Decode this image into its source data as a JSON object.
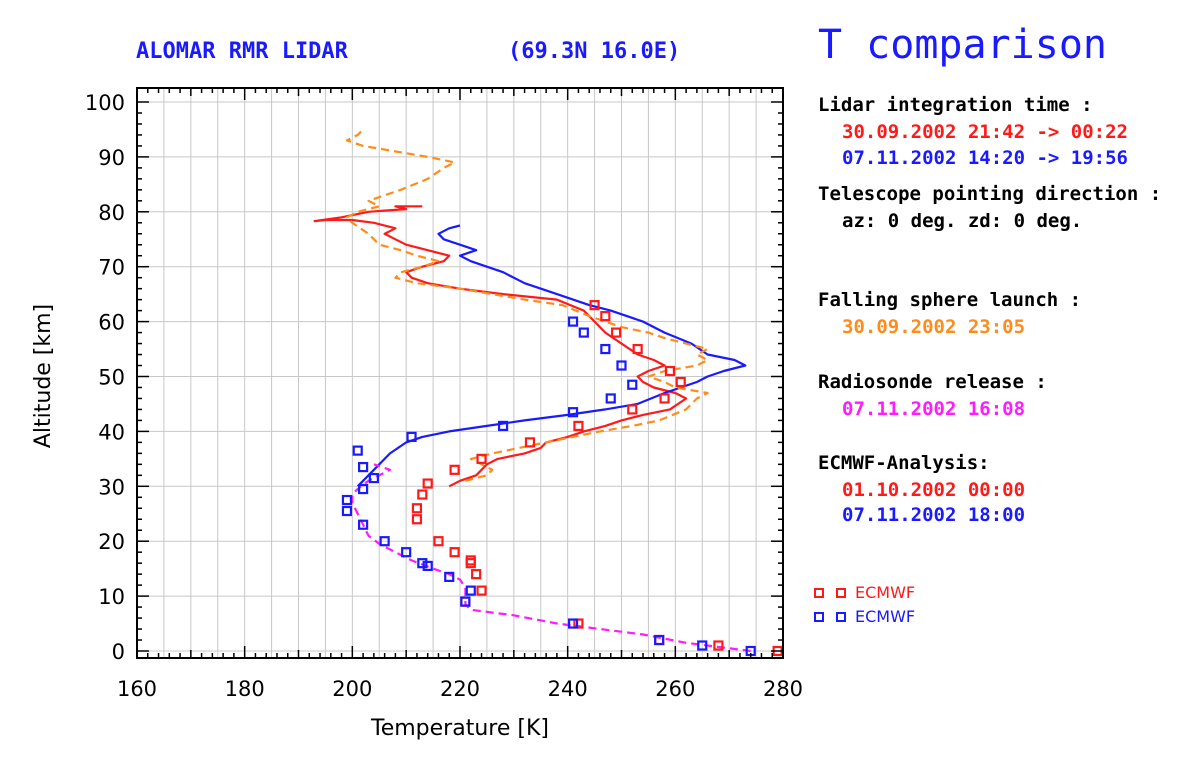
{
  "header": {
    "left_title": "ALOMAR RMR LIDAR",
    "coords": "(69.3N 16.0E)",
    "main_title": "T comparison"
  },
  "panel": {
    "lidar_heading": "Lidar integration time :",
    "lidar_time_1": "30.09.2002 21:42 -> 00:22",
    "lidar_time_2": "07.11.2002 14:20 -> 19:56",
    "telescope_heading": "Telescope pointing direction :",
    "telescope_value": "az: 0 deg. zd: 0 deg.",
    "sphere_heading": "Falling sphere launch :",
    "sphere_value": "30.09.2002 23:05",
    "radiosonde_heading": "Radiosonde release :",
    "radiosonde_value": "07.11.2002 16:08",
    "ecmwf_heading": "ECMWF-Analysis:",
    "ecmwf_value_1": "01.10.2002 00:00",
    "ecmwf_value_2": "07.11.2002 18:00"
  },
  "colors": {
    "red": "#ff1a1a",
    "blue": "#1a1aff",
    "orange": "#ff8c1a",
    "magenta": "#ff1aff",
    "grid": "#c8c8c8"
  },
  "chart_data": {
    "type": "line",
    "xlabel": "Temperature [K]",
    "ylabel": "Altitude [km]",
    "xlim": [
      160,
      280
    ],
    "ylim": [
      0,
      100
    ],
    "x_ticks": [
      160,
      180,
      200,
      220,
      240,
      260,
      280
    ],
    "y_ticks": [
      0,
      10,
      20,
      30,
      40,
      50,
      60,
      70,
      80,
      90,
      100
    ],
    "grid": true,
    "legend": {
      "placement": "right",
      "entries": [
        {
          "label": "ECMWF",
          "color": "#ff1a1a"
        },
        {
          "label": "ECMWF",
          "color": "#1a1aff"
        }
      ]
    },
    "series": [
      {
        "style": "solid",
        "color": "#ff1a1a",
        "points": [
          [
            218,
            30
          ],
          [
            220,
            31
          ],
          [
            223,
            32
          ],
          [
            225,
            34
          ],
          [
            227,
            35
          ],
          [
            232,
            36
          ],
          [
            235,
            37
          ],
          [
            236,
            38
          ],
          [
            240,
            39
          ],
          [
            243,
            40
          ],
          [
            247,
            41
          ],
          [
            250,
            42
          ],
          [
            254,
            43
          ],
          [
            259,
            44
          ],
          [
            262,
            46
          ],
          [
            260,
            47
          ],
          [
            256,
            48
          ],
          [
            254,
            49
          ],
          [
            253,
            50
          ],
          [
            255,
            51
          ],
          [
            258,
            52
          ],
          [
            256,
            53
          ],
          [
            253,
            54
          ],
          [
            250,
            56
          ],
          [
            247,
            58
          ],
          [
            245,
            60
          ],
          [
            243,
            62
          ],
          [
            238,
            64
          ],
          [
            228,
            65
          ],
          [
            220,
            66
          ],
          [
            214,
            67
          ],
          [
            211,
            68
          ],
          [
            210,
            69
          ],
          [
            213,
            70
          ],
          [
            217,
            71
          ],
          [
            218,
            72
          ],
          [
            214,
            73
          ],
          [
            210,
            74
          ],
          [
            208,
            75
          ],
          [
            206,
            76
          ],
          [
            208,
            77
          ],
          [
            204,
            78
          ],
          [
            200,
            78.5
          ],
          [
            195,
            78.5
          ],
          [
            193,
            78.3
          ],
          [
            198,
            79
          ],
          [
            203,
            80
          ],
          [
            210,
            80.5
          ],
          [
            208,
            81
          ],
          [
            213,
            81
          ]
        ]
      },
      {
        "style": "solid",
        "color": "#1a1aff",
        "points": [
          [
            201,
            30
          ],
          [
            203,
            32
          ],
          [
            205,
            34
          ],
          [
            207,
            36
          ],
          [
            210,
            38
          ],
          [
            213,
            39
          ],
          [
            218,
            40
          ],
          [
            225,
            41
          ],
          [
            232,
            42
          ],
          [
            240,
            43
          ],
          [
            247,
            44
          ],
          [
            253,
            45
          ],
          [
            258,
            47
          ],
          [
            261,
            48
          ],
          [
            264,
            49
          ],
          [
            266,
            50
          ],
          [
            269,
            51
          ],
          [
            273,
            52
          ],
          [
            271,
            53
          ],
          [
            266,
            54
          ],
          [
            263,
            56
          ],
          [
            258,
            58
          ],
          [
            254,
            60
          ],
          [
            248,
            62
          ],
          [
            244,
            63
          ],
          [
            238,
            65
          ],
          [
            232,
            67
          ],
          [
            228,
            69
          ],
          [
            225,
            70
          ],
          [
            222,
            71
          ],
          [
            220,
            72
          ],
          [
            223,
            73
          ],
          [
            220,
            74
          ],
          [
            217,
            75
          ],
          [
            216,
            76
          ],
          [
            218,
            77
          ],
          [
            220,
            77.5
          ]
        ]
      },
      {
        "style": "dashed",
        "color": "#ff8c1a",
        "points": [
          [
            221,
            31
          ],
          [
            225,
            32
          ],
          [
            226,
            33
          ],
          [
            224,
            34
          ],
          [
            222,
            35
          ],
          [
            226,
            36
          ],
          [
            231,
            37
          ],
          [
            236,
            38
          ],
          [
            241,
            39
          ],
          [
            246,
            40
          ],
          [
            252,
            41
          ],
          [
            257,
            42
          ],
          [
            262,
            44
          ],
          [
            264,
            46
          ],
          [
            266,
            47
          ],
          [
            260,
            48
          ],
          [
            258,
            49
          ],
          [
            255,
            50
          ],
          [
            258,
            51
          ],
          [
            264,
            52
          ],
          [
            266,
            53
          ],
          [
            264,
            54
          ],
          [
            266,
            55
          ],
          [
            262,
            56
          ],
          [
            258,
            57
          ],
          [
            255,
            58
          ],
          [
            250,
            59
          ],
          [
            247,
            60
          ],
          [
            244,
            61
          ],
          [
            239,
            63
          ],
          [
            232,
            64
          ],
          [
            220,
            66
          ],
          [
            212,
            67
          ],
          [
            208,
            68
          ],
          [
            209,
            69
          ],
          [
            213,
            70
          ],
          [
            216,
            71
          ],
          [
            212,
            72
          ],
          [
            209,
            73
          ],
          [
            205,
            74
          ],
          [
            203,
            76
          ],
          [
            200,
            78
          ],
          [
            199,
            79
          ],
          [
            201,
            80
          ],
          [
            205,
            81
          ],
          [
            203,
            82
          ],
          [
            209,
            84
          ],
          [
            214,
            86
          ],
          [
            217,
            88
          ],
          [
            219,
            89
          ],
          [
            214,
            90
          ],
          [
            208,
            91
          ],
          [
            202,
            92
          ],
          [
            199,
            93
          ],
          [
            201,
            94
          ],
          [
            202,
            95
          ]
        ]
      },
      {
        "style": "dashed",
        "color": "#ff1aff",
        "points": [
          [
            274,
            0
          ],
          [
            270,
            0.5
          ],
          [
            262,
            1.5
          ],
          [
            254,
            3
          ],
          [
            246,
            4
          ],
          [
            238,
            5
          ],
          [
            230,
            6.5
          ],
          [
            222,
            7.5
          ],
          [
            221,
            8.5
          ],
          [
            221,
            10
          ],
          [
            221,
            11.5
          ],
          [
            220,
            13
          ],
          [
            218,
            14
          ],
          [
            215,
            15
          ],
          [
            211,
            16.5
          ],
          [
            208,
            18
          ],
          [
            205,
            19.5
          ],
          [
            203,
            21
          ],
          [
            202,
            23
          ],
          [
            201,
            25
          ],
          [
            200,
            27
          ],
          [
            200,
            28.5
          ],
          [
            201,
            29.5
          ],
          [
            203,
            31
          ],
          [
            205,
            32
          ],
          [
            207,
            33
          ],
          [
            204,
            34
          ]
        ]
      },
      {
        "style": "squares",
        "color": "#ff1a1a",
        "points": [
          [
            279,
            0
          ],
          [
            268,
            1
          ],
          [
            257,
            2
          ],
          [
            242,
            5
          ],
          [
            221,
            9
          ],
          [
            224,
            11
          ],
          [
            223,
            14
          ],
          [
            222,
            16
          ],
          [
            222,
            16.5
          ],
          [
            219,
            18
          ],
          [
            216,
            20
          ],
          [
            212,
            24
          ],
          [
            212,
            26
          ],
          [
            213,
            28.5
          ],
          [
            214,
            30.5
          ],
          [
            219,
            33
          ],
          [
            224,
            35
          ],
          [
            233,
            38
          ],
          [
            242,
            41
          ],
          [
            252,
            44
          ],
          [
            258,
            46
          ],
          [
            261,
            49
          ],
          [
            259,
            51
          ],
          [
            253,
            55
          ],
          [
            249,
            58
          ],
          [
            247,
            61
          ],
          [
            245,
            63
          ]
        ]
      },
      {
        "style": "squares",
        "color": "#1a1aff",
        "points": [
          [
            274,
            0
          ],
          [
            265,
            1
          ],
          [
            257,
            2
          ],
          [
            241,
            5
          ],
          [
            221,
            9
          ],
          [
            222,
            11
          ],
          [
            218,
            13.5
          ],
          [
            214,
            15.5
          ],
          [
            213,
            16
          ],
          [
            210,
            18
          ],
          [
            206,
            20
          ],
          [
            202,
            23
          ],
          [
            199,
            25.5
          ],
          [
            199,
            27.5
          ],
          [
            202,
            29.5
          ],
          [
            204,
            31.5
          ],
          [
            202,
            33.5
          ],
          [
            201,
            36.5
          ],
          [
            211,
            39
          ],
          [
            228,
            41
          ],
          [
            241,
            43.5
          ],
          [
            248,
            46
          ],
          [
            252,
            48.5
          ],
          [
            250,
            52
          ],
          [
            247,
            55
          ],
          [
            243,
            58
          ],
          [
            241,
            60
          ]
        ]
      }
    ]
  }
}
